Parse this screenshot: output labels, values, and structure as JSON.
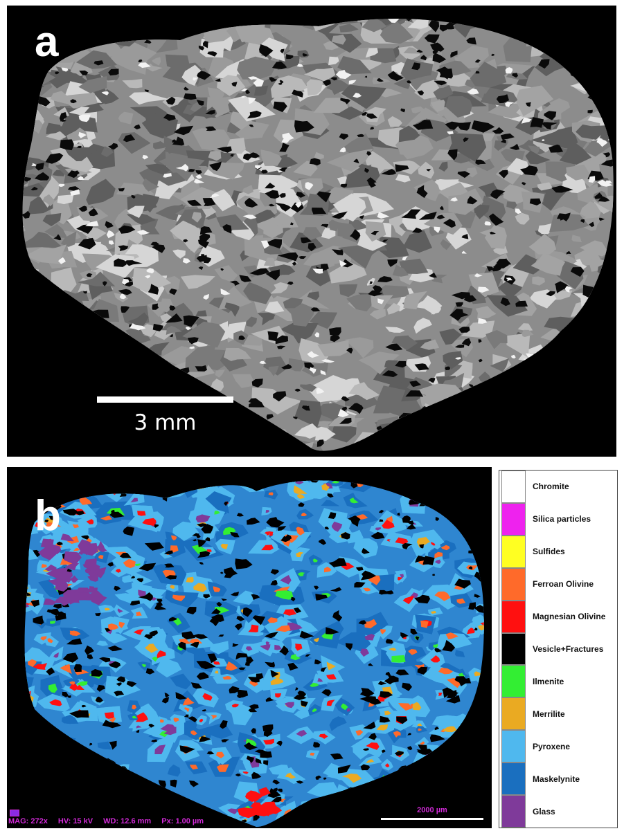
{
  "panel_a": {
    "label": "a",
    "scale_label": "3 mm"
  },
  "panel_b": {
    "label": "b",
    "metadata": {
      "mag": "MAG: 272x",
      "hv": "HV: 15 kV",
      "wd": "WD: 12.6 mm",
      "px": "Px: 1.00 µm"
    },
    "scale_label": "2000 µm"
  },
  "legend": {
    "items": [
      {
        "label": "Chromite",
        "color": "#ffffff"
      },
      {
        "label": "Silica particles",
        "color": "#ee22ee"
      },
      {
        "label": "Sulfides",
        "color": "#ffff22"
      },
      {
        "label": "Ferroan Olivine",
        "color": "#ff6a2a"
      },
      {
        "label": "Magnesian Olivine",
        "color": "#ff1010"
      },
      {
        "label": "Vesicle+Fractures",
        "color": "#000000"
      },
      {
        "label": "Ilmenite",
        "color": "#33ee33"
      },
      {
        "label": "Merrilite",
        "color": "#eaaa22"
      },
      {
        "label": "Pyroxene",
        "color": "#4fb8ee"
      },
      {
        "label": "Maskelynite",
        "color": "#1a6fbf"
      },
      {
        "label": "Glass",
        "color": "#7f3a9a"
      }
    ]
  }
}
